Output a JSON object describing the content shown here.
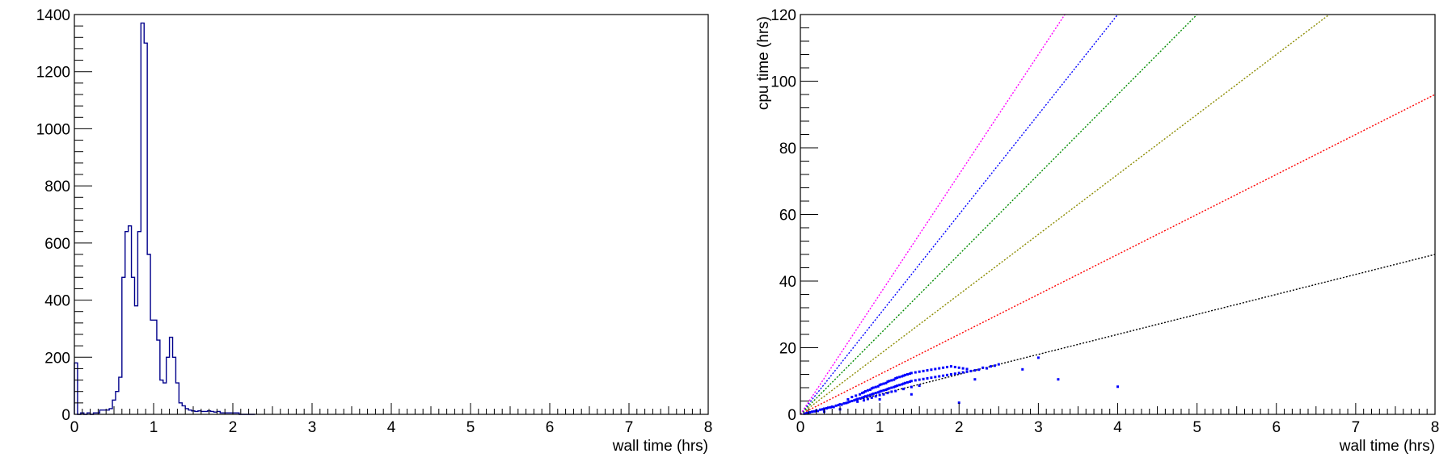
{
  "chart_data": [
    {
      "type": "histogram",
      "xlabel": "wall time (hrs)",
      "ylabel": "",
      "xlim": [
        0,
        8
      ],
      "ylim": [
        0,
        1400
      ],
      "x_ticks": [
        "0",
        "1",
        "2",
        "3",
        "4",
        "5",
        "6",
        "7",
        "8"
      ],
      "y_ticks": [
        "0",
        "200",
        "400",
        "600",
        "800",
        "1000",
        "1200",
        "1400"
      ],
      "grid": false,
      "line_color": "#00008b",
      "bin_width": 0.04,
      "values": [
        180,
        0,
        5,
        0,
        5,
        0,
        5,
        5,
        15,
        15,
        15,
        20,
        50,
        80,
        130,
        480,
        640,
        660,
        480,
        380,
        640,
        1370,
        1300,
        560,
        330,
        330,
        260,
        120,
        110,
        200,
        270,
        200,
        110,
        40,
        30,
        20,
        15,
        12,
        10,
        12,
        10,
        10,
        12,
        10,
        8,
        10,
        5,
        5,
        5,
        5,
        5,
        5,
        0,
        0,
        0,
        0,
        0
      ]
    },
    {
      "type": "scatter",
      "xlabel": "wall time (hrs)",
      "ylabel": "cpu time (hrs)",
      "xlim": [
        0,
        8
      ],
      "ylim": [
        0,
        120
      ],
      "x_ticks": [
        "0",
        "1",
        "2",
        "3",
        "4",
        "5",
        "6",
        "7",
        "8"
      ],
      "y_ticks": [
        "0",
        "20",
        "40",
        "60",
        "80",
        "100",
        "120"
      ],
      "grid": false,
      "reference_lines": [
        {
          "slope": 6,
          "color": "#000000"
        },
        {
          "slope": 12,
          "color": "#ff0000"
        },
        {
          "slope": 18,
          "color": "#8b8b00"
        },
        {
          "slope": 24,
          "color": "#008b00"
        },
        {
          "slope": 30,
          "color": "#0000ff"
        },
        {
          "slope": 36,
          "color": "#ff00ff"
        }
      ],
      "point_color": "#0000ff",
      "series": [
        {
          "points": [
            [
              0.05,
              0.2
            ],
            [
              0.08,
              0.4
            ],
            [
              0.1,
              0.3
            ],
            [
              0.12,
              0.6
            ],
            [
              0.15,
              0.8
            ],
            [
              0.18,
              0.9
            ],
            [
              0.2,
              1.1
            ],
            [
              0.22,
              1.0
            ],
            [
              0.25,
              1.4
            ],
            [
              0.28,
              1.5
            ],
            [
              0.3,
              1.7
            ],
            [
              0.33,
              1.8
            ],
            [
              0.35,
              2.0
            ],
            [
              0.38,
              2.1
            ],
            [
              0.4,
              2.3
            ],
            [
              0.42,
              2.2
            ],
            [
              0.45,
              2.6
            ],
            [
              0.48,
              2.8
            ],
            [
              0.5,
              3.0
            ],
            [
              0.52,
              2.9
            ],
            [
              0.55,
              3.3
            ],
            [
              0.58,
              3.4
            ],
            [
              0.6,
              3.6
            ],
            [
              0.6,
              4.5
            ],
            [
              0.62,
              3.8
            ],
            [
              0.65,
              4.0
            ],
            [
              0.65,
              5.2
            ],
            [
              0.68,
              4.2
            ],
            [
              0.7,
              4.4
            ],
            [
              0.7,
              5.6
            ],
            [
              0.72,
              4.6
            ],
            [
              0.72,
              3.8
            ],
            [
              0.75,
              4.8
            ],
            [
              0.75,
              6.0
            ],
            [
              0.78,
              5.0
            ],
            [
              0.78,
              6.4
            ],
            [
              0.8,
              5.2
            ],
            [
              0.8,
              6.6
            ],
            [
              0.8,
              4.2
            ],
            [
              0.82,
              5.4
            ],
            [
              0.82,
              6.9
            ],
            [
              0.85,
              5.6
            ],
            [
              0.85,
              7.2
            ],
            [
              0.85,
              4.6
            ],
            [
              0.88,
              5.8
            ],
            [
              0.88,
              7.4
            ],
            [
              0.9,
              6.0
            ],
            [
              0.9,
              7.8
            ],
            [
              0.9,
              5.0
            ],
            [
              0.92,
              6.2
            ],
            [
              0.92,
              8.0
            ],
            [
              0.95,
              6.4
            ],
            [
              0.95,
              8.2
            ],
            [
              0.95,
              5.4
            ],
            [
              0.98,
              6.6
            ],
            [
              0.98,
              8.4
            ],
            [
              1.0,
              6.8
            ],
            [
              1.0,
              8.8
            ],
            [
              1.0,
              5.8
            ],
            [
              1.02,
              7.0
            ],
            [
              1.02,
              9.0
            ],
            [
              1.05,
              7.2
            ],
            [
              1.05,
              9.2
            ],
            [
              1.05,
              6.0
            ],
            [
              1.08,
              7.4
            ],
            [
              1.08,
              9.4
            ],
            [
              1.1,
              7.6
            ],
            [
              1.1,
              9.8
            ],
            [
              1.1,
              6.4
            ],
            [
              1.12,
              7.8
            ],
            [
              1.12,
              10.0
            ],
            [
              1.15,
              8.0
            ],
            [
              1.15,
              10.2
            ],
            [
              1.15,
              6.8
            ],
            [
              1.18,
              8.2
            ],
            [
              1.18,
              10.4
            ],
            [
              1.2,
              8.4
            ],
            [
              1.2,
              10.8
            ],
            [
              1.2,
              7.0
            ],
            [
              1.22,
              8.6
            ],
            [
              1.22,
              11.0
            ],
            [
              1.25,
              8.8
            ],
            [
              1.25,
              11.2
            ],
            [
              1.28,
              9.0
            ],
            [
              1.28,
              11.4
            ],
            [
              1.3,
              9.2
            ],
            [
              1.3,
              11.6
            ],
            [
              1.3,
              7.6
            ],
            [
              1.32,
              9.4
            ],
            [
              1.32,
              11.8
            ],
            [
              1.35,
              9.6
            ],
            [
              1.35,
              12.0
            ],
            [
              1.38,
              9.8
            ],
            [
              1.38,
              12.2
            ],
            [
              1.4,
              10.0
            ],
            [
              1.4,
              12.4
            ],
            [
              1.4,
              8.2
            ],
            [
              1.45,
              10.2
            ],
            [
              1.45,
              12.6
            ],
            [
              1.5,
              10.4
            ],
            [
              1.5,
              12.8
            ],
            [
              1.5,
              8.6
            ],
            [
              1.55,
              10.6
            ],
            [
              1.55,
              13.0
            ],
            [
              1.6,
              10.8
            ],
            [
              1.6,
              13.2
            ],
            [
              1.65,
              11.0
            ],
            [
              1.65,
              13.4
            ],
            [
              1.7,
              11.2
            ],
            [
              1.7,
              13.6
            ],
            [
              1.75,
              11.4
            ],
            [
              1.75,
              13.8
            ],
            [
              1.8,
              11.6
            ],
            [
              1.8,
              14.0
            ],
            [
              1.85,
              11.8
            ],
            [
              1.85,
              14.2
            ],
            [
              1.9,
              12.0
            ],
            [
              1.9,
              14.4
            ],
            [
              1.95,
              12.2
            ],
            [
              1.95,
              14.2
            ],
            [
              2.0,
              12.4
            ],
            [
              2.0,
              14.0
            ],
            [
              2.05,
              12.6
            ],
            [
              2.05,
              13.8
            ],
            [
              2.1,
              12.8
            ],
            [
              2.1,
              13.6
            ],
            [
              2.15,
              13.0
            ],
            [
              2.2,
              13.2
            ],
            [
              2.25,
              13.4
            ],
            [
              2.3,
              14.0
            ],
            [
              2.35,
              13.8
            ],
            [
              2.4,
              14.4
            ],
            [
              2.45,
              14.6
            ],
            [
              2.5,
              15.0
            ],
            [
              2.0,
              3.5
            ],
            [
              2.8,
              13.5
            ],
            [
              3.0,
              17.0
            ],
            [
              3.25,
              10.5
            ],
            [
              4.0,
              8.3
            ],
            [
              2.2,
              10.5
            ],
            [
              1.0,
              4.5
            ],
            [
              1.4,
              6.0
            ],
            [
              0.5,
              1.5
            ],
            [
              0.3,
              0.8
            ]
          ]
        }
      ]
    }
  ]
}
